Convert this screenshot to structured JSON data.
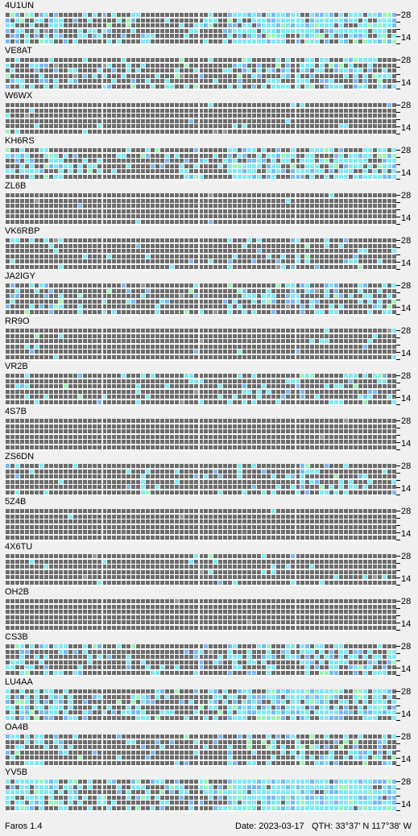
{
  "app": {
    "name": "Faros 1.4"
  },
  "status": {
    "date": "Date: 2023-03-17",
    "qth": "QTH: 33°37' N  117°38' W"
  },
  "axis": {
    "top_label": "28",
    "bottom_label": "14"
  },
  "colors": {
    "cell_off": "#6c6c6c",
    "cell_marker": "#9a9a9a",
    "cell_weak": "#7ab8f5",
    "cell_mid": "#7fe9f5",
    "cell_strong": "#9cf5b4",
    "cell_blue": "#7a7ae8",
    "grid_line": "#ffffff"
  },
  "beacons": [
    {
      "call": "4U1UN"
    },
    {
      "call": "VE8AT"
    },
    {
      "call": "W6WX"
    },
    {
      "call": "KH6RS"
    },
    {
      "call": "ZL6B"
    },
    {
      "call": "VK6RBP"
    },
    {
      "call": "JA2IGY"
    },
    {
      "call": "RR9O"
    },
    {
      "call": "VR2B"
    },
    {
      "call": "4S7B"
    },
    {
      "call": "ZS6DN"
    },
    {
      "call": "5Z4B"
    },
    {
      "call": "4X6TU"
    },
    {
      "call": "OH2B"
    },
    {
      "call": "CS3B"
    },
    {
      "call": "LU4AA"
    },
    {
      "call": "OA4B"
    },
    {
      "call": "YV5B"
    }
  ]
}
